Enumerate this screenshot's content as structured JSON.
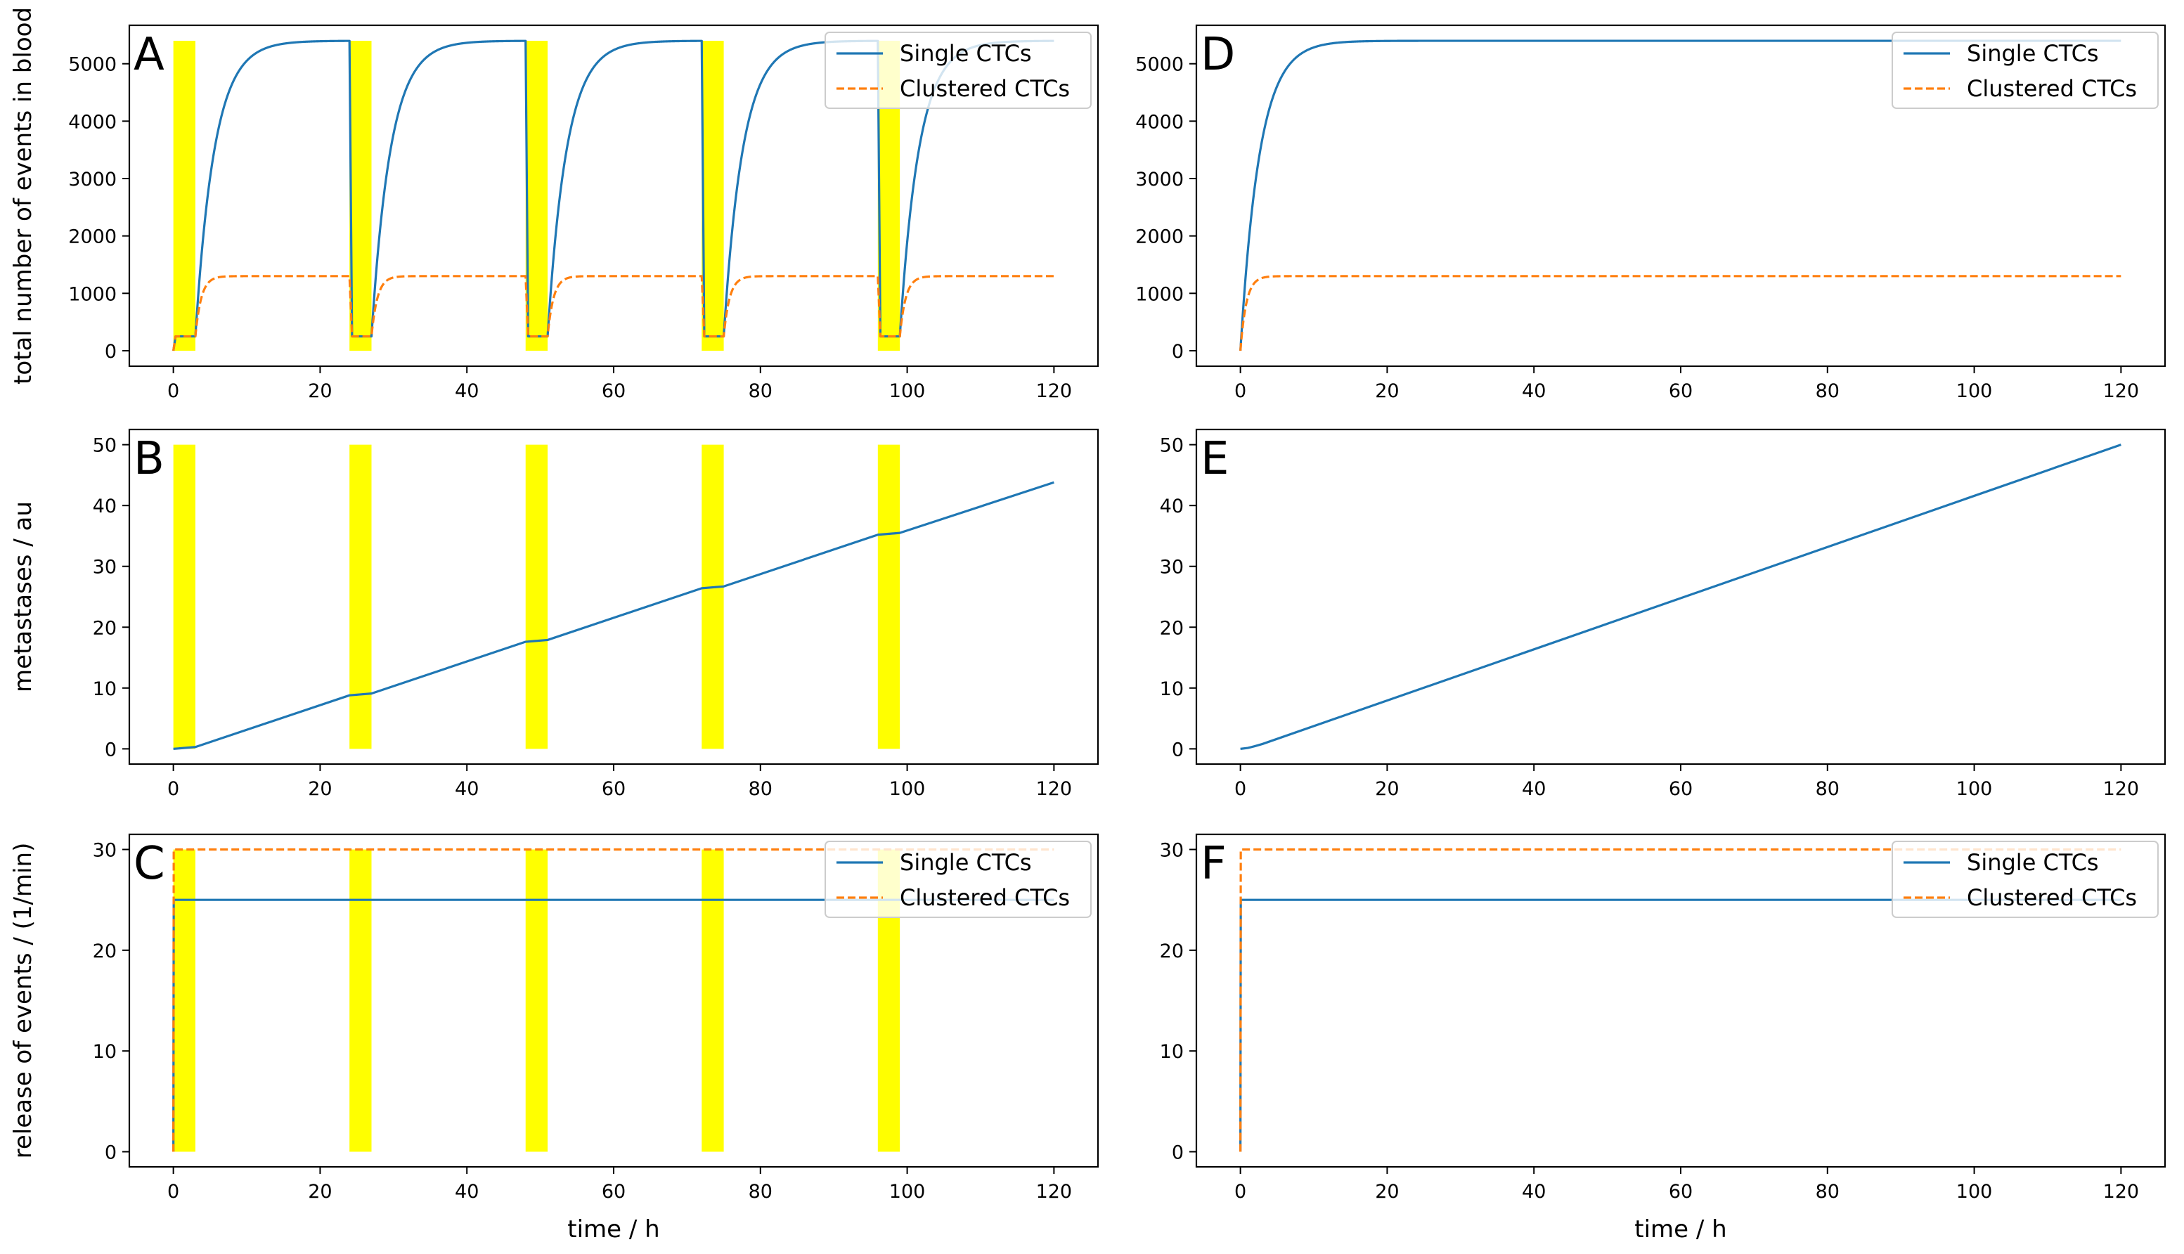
{
  "figure": {
    "xlabel": "time / h",
    "colors": {
      "single": "#1f77b4",
      "clustered": "#ff7f0e",
      "highlight": "#ffff00",
      "frame": "#000000"
    }
  },
  "chart_data": [
    {
      "panel": "A",
      "type": "line",
      "title": "",
      "xlabel": "",
      "ylabel": "total number of events in blood",
      "xlim": [
        -6,
        126
      ],
      "ylim": [
        -270,
        5670
      ],
      "xticks": [
        0,
        20,
        40,
        60,
        80,
        100,
        120
      ],
      "yticks": [
        0,
        1000,
        2000,
        3000,
        4000,
        5000
      ],
      "highlight_intervals": [
        [
          0,
          3
        ],
        [
          24,
          27
        ],
        [
          48,
          51
        ],
        [
          72,
          75
        ],
        [
          96,
          99
        ]
      ],
      "legend": {
        "placement": "upper right",
        "entries": [
          "Single CTCs",
          "Clustered CTCs"
        ]
      },
      "series": [
        {
          "name": "Single CTCs",
          "style": "solid",
          "model": "periodic_exponential",
          "period": 24,
          "treatment_hours": 3,
          "treatment_level": 250,
          "plateau": 5400,
          "time_constant": 2.6
        },
        {
          "name": "Clustered CTCs",
          "style": "dashed",
          "model": "periodic_exponential",
          "period": 24,
          "treatment_hours": 3,
          "treatment_level": 250,
          "plateau": 1300,
          "time_constant": 0.8
        }
      ]
    },
    {
      "panel": "B",
      "type": "line",
      "title": "",
      "xlabel": "",
      "ylabel": "metastases / au",
      "xlim": [
        -6,
        126
      ],
      "ylim": [
        -2.5,
        52.5
      ],
      "xticks": [
        0,
        20,
        40,
        60,
        80,
        100,
        120
      ],
      "yticks": [
        0,
        10,
        20,
        30,
        40,
        50
      ],
      "highlight_intervals": [
        [
          0,
          3
        ],
        [
          24,
          27
        ],
        [
          48,
          51
        ],
        [
          72,
          75
        ],
        [
          96,
          99
        ]
      ],
      "series": [
        {
          "name": "",
          "style": "solid",
          "x": [
            0,
            3,
            24,
            27,
            48,
            51,
            72,
            75,
            96,
            99,
            120
          ],
          "y": [
            0,
            0.3,
            8.8,
            9.1,
            17.6,
            17.9,
            26.4,
            26.7,
            35.2,
            35.5,
            43.8
          ]
        }
      ]
    },
    {
      "panel": "C",
      "type": "line",
      "title": "",
      "xlabel": "time / h",
      "ylabel": "release of events / (1/min)",
      "xlim": [
        -6,
        126
      ],
      "ylim": [
        -1.5,
        31.5
      ],
      "xticks": [
        0,
        20,
        40,
        60,
        80,
        100,
        120
      ],
      "yticks": [
        0,
        10,
        20,
        30
      ],
      "highlight_intervals": [
        [
          0,
          3
        ],
        [
          24,
          27
        ],
        [
          48,
          51
        ],
        [
          72,
          75
        ],
        [
          96,
          99
        ]
      ],
      "legend": {
        "placement": "upper right",
        "entries": [
          "Single CTCs",
          "Clustered CTCs"
        ]
      },
      "series": [
        {
          "name": "Single CTCs",
          "style": "solid",
          "x": [
            0,
            0.05,
            120
          ],
          "y": [
            0,
            25,
            25
          ]
        },
        {
          "name": "Clustered CTCs",
          "style": "dashed",
          "x": [
            0,
            0.05,
            120
          ],
          "y": [
            0,
            30,
            30
          ]
        }
      ]
    },
    {
      "panel": "D",
      "type": "line",
      "title": "",
      "xlabel": "",
      "ylabel": "",
      "xlim": [
        -6,
        126
      ],
      "ylim": [
        -270,
        5670
      ],
      "xticks": [
        0,
        20,
        40,
        60,
        80,
        100,
        120
      ],
      "yticks": [
        0,
        1000,
        2000,
        3000,
        4000,
        5000
      ],
      "highlight_intervals": [],
      "legend": {
        "placement": "upper right",
        "entries": [
          "Single CTCs",
          "Clustered CTCs"
        ]
      },
      "series": [
        {
          "name": "Single CTCs",
          "style": "solid",
          "model": "exponential",
          "plateau": 5400,
          "time_constant": 2.6
        },
        {
          "name": "Clustered CTCs",
          "style": "dashed",
          "model": "exponential",
          "plateau": 1300,
          "time_constant": 0.8
        }
      ]
    },
    {
      "panel": "E",
      "type": "line",
      "title": "",
      "xlabel": "",
      "ylabel": "",
      "xlim": [
        -6,
        126
      ],
      "ylim": [
        -2.5,
        52.5
      ],
      "xticks": [
        0,
        20,
        40,
        60,
        80,
        100,
        120
      ],
      "yticks": [
        0,
        10,
        20,
        30,
        40,
        50
      ],
      "highlight_intervals": [],
      "series": [
        {
          "name": "",
          "style": "solid",
          "x": [
            0,
            1,
            2,
            3,
            120
          ],
          "y": [
            0,
            0.15,
            0.45,
            0.8,
            50
          ]
        }
      ]
    },
    {
      "panel": "F",
      "type": "line",
      "title": "",
      "xlabel": "time / h",
      "ylabel": "",
      "xlim": [
        -6,
        126
      ],
      "ylim": [
        -1.5,
        31.5
      ],
      "xticks": [
        0,
        20,
        40,
        60,
        80,
        100,
        120
      ],
      "yticks": [
        0,
        10,
        20,
        30
      ],
      "highlight_intervals": [],
      "legend": {
        "placement": "upper right",
        "entries": [
          "Single CTCs",
          "Clustered CTCs"
        ]
      },
      "series": [
        {
          "name": "Single CTCs",
          "style": "solid",
          "x": [
            0,
            0.05,
            120
          ],
          "y": [
            0,
            25,
            25
          ]
        },
        {
          "name": "Clustered CTCs",
          "style": "dashed",
          "x": [
            0,
            0.05,
            120
          ],
          "y": [
            0,
            30,
            30
          ]
        }
      ]
    }
  ]
}
